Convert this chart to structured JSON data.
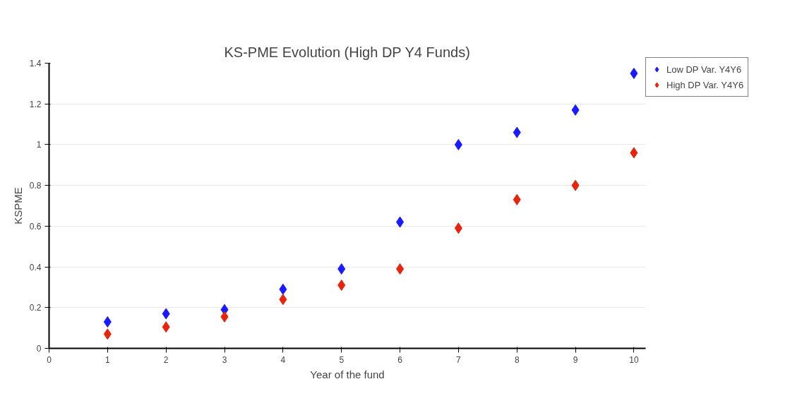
{
  "chart_data": {
    "type": "scatter",
    "title": "KS-PME Evolution (High DP Y4 Funds)",
    "xlabel": "Year of the fund",
    "ylabel": "KSPME",
    "x": [
      1,
      2,
      3,
      4,
      5,
      6,
      7,
      8,
      9,
      10
    ],
    "series": [
      {
        "name": "Low DP Var. Y4Y6",
        "color": "#1a1aff",
        "values": [
          0.13,
          0.17,
          0.19,
          0.29,
          0.39,
          0.62,
          1.0,
          1.06,
          1.17,
          1.35
        ]
      },
      {
        "name": "High DP Var. Y4Y6",
        "color": "#e8250c",
        "values": [
          0.07,
          0.105,
          0.155,
          0.24,
          0.31,
          0.39,
          0.59,
          0.73,
          0.8,
          0.96
        ]
      }
    ],
    "xlim": [
      0,
      10.2
    ],
    "xticks": [
      0,
      1,
      2,
      3,
      4,
      5,
      6,
      7,
      8,
      9,
      10
    ],
    "ylim": [
      0,
      1.4
    ],
    "yticks": [
      0,
      0.2,
      0.4,
      0.6,
      0.8,
      1,
      1.2,
      1.4
    ],
    "grid": "y",
    "legend": "top right",
    "marker": "diamond"
  }
}
